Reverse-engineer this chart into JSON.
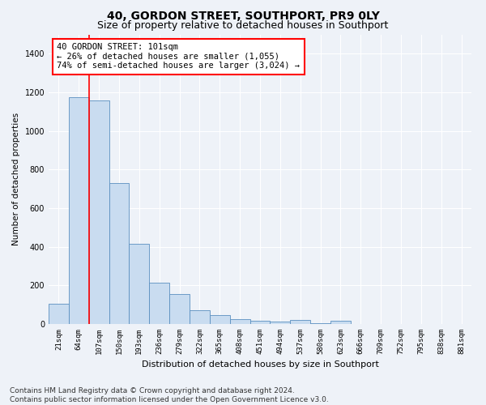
{
  "title": "40, GORDON STREET, SOUTHPORT, PR9 0LY",
  "subtitle": "Size of property relative to detached houses in Southport",
  "xlabel": "Distribution of detached houses by size in Southport",
  "ylabel": "Number of detached properties",
  "categories": [
    "21sqm",
    "64sqm",
    "107sqm",
    "150sqm",
    "193sqm",
    "236sqm",
    "279sqm",
    "322sqm",
    "365sqm",
    "408sqm",
    "451sqm",
    "494sqm",
    "537sqm",
    "580sqm",
    "623sqm",
    "666sqm",
    "709sqm",
    "752sqm",
    "795sqm",
    "838sqm",
    "881sqm"
  ],
  "bar_values": [
    105,
    1175,
    1160,
    730,
    415,
    215,
    155,
    70,
    45,
    27,
    18,
    13,
    20,
    5,
    18,
    0,
    0,
    0,
    0,
    0,
    0
  ],
  "bar_color": "#c9dcf0",
  "bar_edge_color": "#5a8fc0",
  "annotation_text": "40 GORDON STREET: 101sqm\n← 26% of detached houses are smaller (1,055)\n74% of semi-detached houses are larger (3,024) →",
  "vline_x": 1.5,
  "ylim": [
    0,
    1500
  ],
  "yticks": [
    0,
    200,
    400,
    600,
    800,
    1000,
    1200,
    1400
  ],
  "footer": "Contains HM Land Registry data © Crown copyright and database right 2024.\nContains public sector information licensed under the Open Government Licence v3.0.",
  "background_color": "#eef2f8",
  "plot_background_color": "#eef2f8",
  "grid_color": "#ffffff",
  "title_fontsize": 10,
  "subtitle_fontsize": 9,
  "annotation_fontsize": 7.5,
  "footer_fontsize": 6.5,
  "ylabel_fontsize": 7.5,
  "xlabel_fontsize": 8,
  "tick_fontsize": 6.5
}
